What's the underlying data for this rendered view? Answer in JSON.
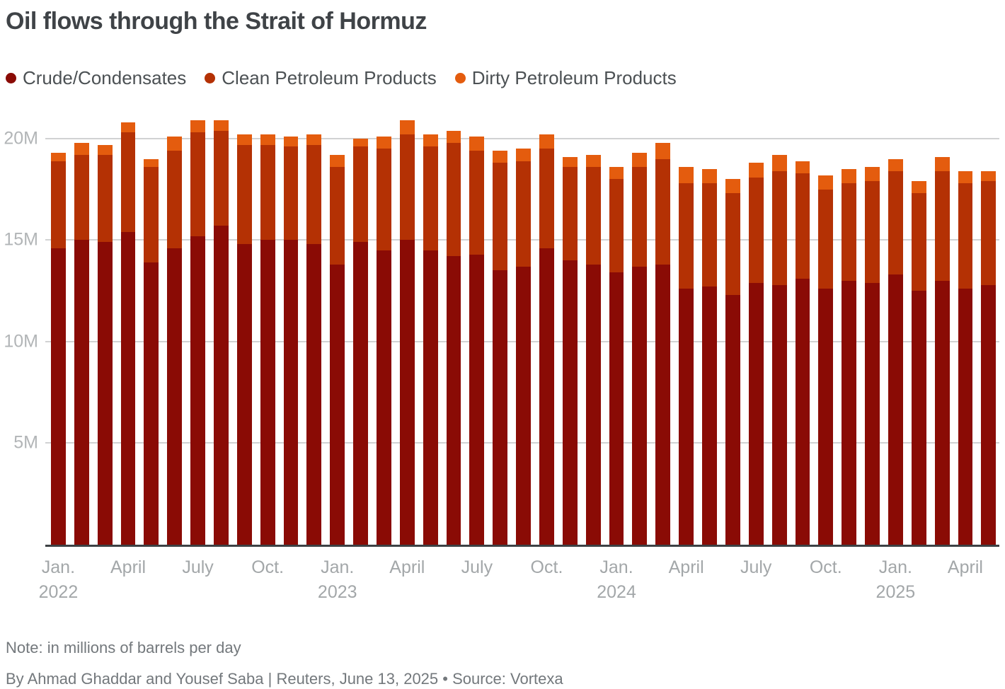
{
  "title": "Oil flows through the Strait of Hormuz",
  "legend": [
    {
      "label": "Crude/Condensates",
      "color": "#8a0b05"
    },
    {
      "label": "Clean Petroleum Products",
      "color": "#b43104"
    },
    {
      "label": "Dirty Petroleum Products",
      "color": "#e45c0e"
    }
  ],
  "note": "Note: in millions of barrels per day",
  "byline": "By Ahmad Ghaddar and Yousef Saba | Reuters, June 13, 2025 • Source: Vortexa",
  "chart_data": {
    "type": "bar",
    "stacked": true,
    "unit": "millions of barrels per day",
    "ylim": [
      0,
      21.4
    ],
    "grid": "horizontal",
    "legend_position": "top",
    "yticks": [
      {
        "value": 5,
        "label": "5M"
      },
      {
        "value": 10,
        "label": "10M"
      },
      {
        "value": 15,
        "label": "15M"
      },
      {
        "value": 20,
        "label": "20M"
      }
    ],
    "categories": [
      "Jan. 2022",
      "Feb. 2022",
      "March 2022",
      "April 2022",
      "May 2022",
      "June 2022",
      "July 2022",
      "Aug. 2022",
      "Sep. 2022",
      "Oct. 2022",
      "Nov. 2022",
      "Dec. 2022",
      "Jan. 2023",
      "Feb. 2023",
      "March 2023",
      "April 2023",
      "May 2023",
      "June 2023",
      "July 2023",
      "Aug. 2023",
      "Sep. 2023",
      "Oct. 2023",
      "Nov. 2023",
      "Dec. 2023",
      "Jan. 2024",
      "Feb. 2024",
      "March 2024",
      "April 2024",
      "May 2024",
      "June 2024",
      "July 2024",
      "Aug. 2024",
      "Sep. 2024",
      "Oct. 2024",
      "Nov. 2024",
      "Dec. 2024",
      "Jan. 2025",
      "Feb. 2025",
      "March 2025",
      "April 2025",
      "May 2025"
    ],
    "series": [
      {
        "name": "Crude/Condensates",
        "color": "#8a0b05",
        "values": [
          14.6,
          15.0,
          14.9,
          15.4,
          13.9,
          14.6,
          15.2,
          15.7,
          14.8,
          15.0,
          15.0,
          14.8,
          13.8,
          14.9,
          14.5,
          15.0,
          14.5,
          14.2,
          14.3,
          13.5,
          13.7,
          14.6,
          14.0,
          13.8,
          13.4,
          13.7,
          13.8,
          12.6,
          12.7,
          12.3,
          12.9,
          12.8,
          13.1,
          12.6,
          13.0,
          12.9,
          13.3,
          12.5,
          13.0,
          12.6,
          12.8
        ]
      },
      {
        "name": "Clean Petroleum Products",
        "color": "#b43104",
        "values": [
          4.3,
          4.2,
          4.3,
          4.9,
          4.7,
          4.8,
          5.1,
          4.7,
          4.9,
          4.7,
          4.6,
          4.9,
          4.8,
          4.7,
          5.0,
          5.2,
          5.1,
          5.6,
          5.1,
          5.3,
          5.2,
          4.9,
          4.6,
          4.8,
          4.6,
          4.9,
          5.2,
          5.2,
          5.1,
          5.0,
          5.2,
          5.6,
          5.2,
          4.9,
          4.8,
          5.0,
          5.1,
          4.8,
          5.4,
          5.2,
          5.1
        ]
      },
      {
        "name": "Dirty Petroleum Products",
        "color": "#e45c0e",
        "values": [
          0.4,
          0.6,
          0.5,
          0.5,
          0.4,
          0.7,
          0.6,
          0.5,
          0.5,
          0.5,
          0.5,
          0.5,
          0.6,
          0.4,
          0.6,
          0.7,
          0.6,
          0.6,
          0.7,
          0.6,
          0.6,
          0.7,
          0.5,
          0.6,
          0.6,
          0.7,
          0.8,
          0.8,
          0.7,
          0.7,
          0.7,
          0.8,
          0.6,
          0.7,
          0.7,
          0.7,
          0.6,
          0.6,
          0.7,
          0.6,
          0.5
        ]
      }
    ],
    "x_ticks": [
      {
        "index": 0,
        "line1": "Jan.",
        "line2": "2022"
      },
      {
        "index": 3,
        "line1": "April"
      },
      {
        "index": 6,
        "line1": "July"
      },
      {
        "index": 9,
        "line1": "Oct."
      },
      {
        "index": 12,
        "line1": "Jan.",
        "line2": "2023"
      },
      {
        "index": 15,
        "line1": "April"
      },
      {
        "index": 18,
        "line1": "July"
      },
      {
        "index": 21,
        "line1": "Oct."
      },
      {
        "index": 24,
        "line1": "Jan.",
        "line2": "2024"
      },
      {
        "index": 27,
        "line1": "April"
      },
      {
        "index": 30,
        "line1": "July"
      },
      {
        "index": 33,
        "line1": "Oct."
      },
      {
        "index": 36,
        "line1": "Jan.",
        "line2": "2025"
      },
      {
        "index": 39,
        "line1": "April"
      }
    ]
  }
}
